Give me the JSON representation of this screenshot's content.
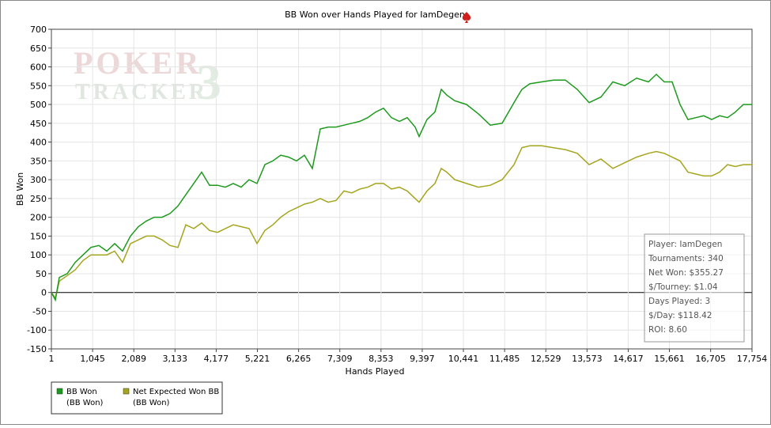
{
  "chart_data": {
    "type": "line",
    "title": "BB Won over Hands Played for IamDegen",
    "x_label": "Hands Played",
    "y_label": "BB Won",
    "xlim": [
      1,
      17754
    ],
    "ylim": [
      -150,
      700
    ],
    "xticks": [
      1,
      {
        "value": 1045,
        "label": "1,045"
      },
      {
        "value": 2089,
        "label": "2,089"
      },
      {
        "value": 3133,
        "label": "3,133"
      },
      {
        "value": 4177,
        "label": "4,177"
      },
      {
        "value": 5221,
        "label": "5,221"
      },
      {
        "value": 6265,
        "label": "6,265"
      },
      {
        "value": 7309,
        "label": "7,309"
      },
      {
        "value": 8353,
        "label": "8,353"
      },
      {
        "value": 9397,
        "label": "9,397"
      },
      {
        "value": 10441,
        "label": "10,441"
      },
      {
        "value": 11485,
        "label": "11,485"
      },
      {
        "value": 12529,
        "label": "12,529"
      },
      {
        "value": 13573,
        "label": "13,573"
      },
      {
        "value": 14617,
        "label": "14,617"
      },
      {
        "value": 15661,
        "label": "15,661"
      },
      {
        "value": 16705,
        "label": "16,705"
      },
      {
        "value": 17754,
        "label": "17,754"
      }
    ],
    "yticks": [
      -150,
      -100,
      -50,
      0,
      50,
      100,
      150,
      200,
      250,
      300,
      350,
      400,
      450,
      500,
      550,
      600,
      650,
      700
    ],
    "grid": true,
    "legend_position": "bottom-left",
    "x": [
      1,
      101,
      201,
      402,
      602,
      803,
      1003,
      1203,
      1404,
      1604,
      1804,
      2005,
      2205,
      2405,
      2606,
      2806,
      3007,
      3207,
      3407,
      3608,
      3808,
      4008,
      4209,
      4409,
      4610,
      4810,
      5010,
      5211,
      5411,
      5611,
      5812,
      6012,
      6212,
      6413,
      6613,
      6814,
      7014,
      7214,
      7415,
      7615,
      7815,
      8016,
      8216,
      8417,
      8617,
      8817,
      9018,
      9218,
      9318,
      9519,
      9719,
      9879,
      10019,
      10220,
      10520,
      10821,
      11122,
      11422,
      11723,
      11923,
      12123,
      12424,
      12724,
      13025,
      13326,
      13626,
      13927,
      14227,
      14528,
      14828,
      15129,
      15329,
      15530,
      15730,
      15930,
      16131,
      16331,
      16531,
      16732,
      16932,
      17133,
      17333,
      17533,
      17754
    ],
    "series": [
      {
        "name": "BB Won",
        "legend_note": "(BB Won)",
        "color": "#1d9a1d",
        "values": [
          0,
          -20,
          40,
          50,
          80,
          100,
          120,
          125,
          110,
          130,
          110,
          150,
          175,
          190,
          200,
          200,
          210,
          230,
          260,
          290,
          320,
          285,
          285,
          280,
          290,
          280,
          300,
          290,
          340,
          350,
          365,
          360,
          350,
          365,
          330,
          435,
          440,
          440,
          445,
          450,
          455,
          465,
          480,
          490,
          465,
          455,
          465,
          440,
          415,
          460,
          480,
          540,
          525,
          510,
          500,
          475,
          445,
          450,
          505,
          540,
          555,
          560,
          565,
          565,
          540,
          505,
          520,
          560,
          550,
          570,
          560,
          580,
          560,
          560,
          500,
          460,
          465,
          470,
          460,
          470,
          465,
          480,
          500,
          500
        ]
      },
      {
        "name": "Net Expected Won BB",
        "legend_note": "(BB Won)",
        "color": "#a5a51f",
        "values": [
          0,
          -15,
          30,
          45,
          60,
          85,
          100,
          100,
          100,
          110,
          80,
          130,
          140,
          150,
          150,
          140,
          125,
          120,
          180,
          170,
          185,
          165,
          160,
          170,
          180,
          175,
          170,
          130,
          165,
          180,
          200,
          215,
          225,
          235,
          240,
          250,
          240,
          245,
          270,
          265,
          275,
          280,
          290,
          290,
          275,
          280,
          270,
          250,
          240,
          270,
          290,
          330,
          320,
          300,
          290,
          280,
          285,
          300,
          340,
          385,
          390,
          390,
          385,
          380,
          370,
          340,
          355,
          330,
          345,
          360,
          370,
          375,
          370,
          360,
          350,
          320,
          315,
          310,
          310,
          320,
          340,
          335,
          340,
          340
        ]
      }
    ],
    "watermark": [
      "POKER",
      "TRACKER",
      "3"
    ],
    "stats_box": [
      "Player: IamDegen",
      "Tournaments: 340",
      "Net Won: $355.27",
      "$/Tourney: $1.04",
      "Days Played: 3",
      "$/Day: $118.42",
      "ROI: 8.60"
    ]
  }
}
